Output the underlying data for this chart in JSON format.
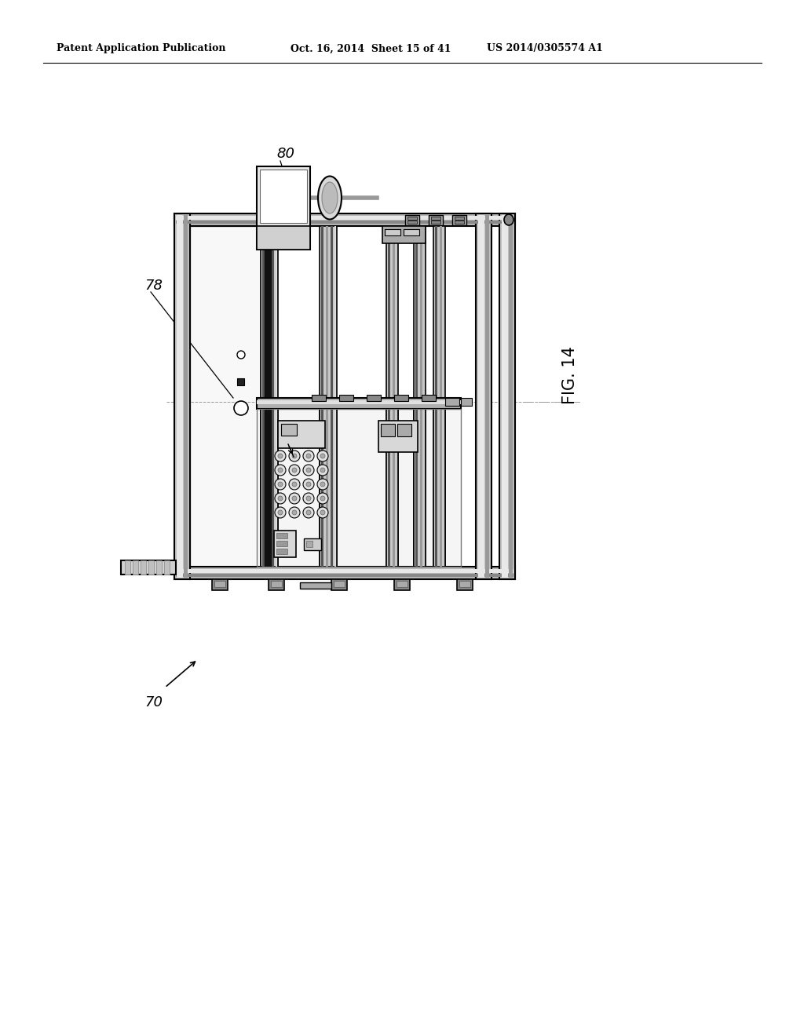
{
  "bg_color": "#ffffff",
  "header_left": "Patent Application Publication",
  "header_center": "Oct. 16, 2014  Sheet 15 of 41",
  "header_right": "US 2014/0305574 A1",
  "fig_label": "FIG. 14",
  "callout_80": "80",
  "callout_78": "78",
  "callout_70": "70",
  "line_color": "#000000",
  "dark_gray": "#333333",
  "mid_gray": "#888888",
  "light_gray": "#cccccc",
  "very_light_gray": "#f0f0f0"
}
